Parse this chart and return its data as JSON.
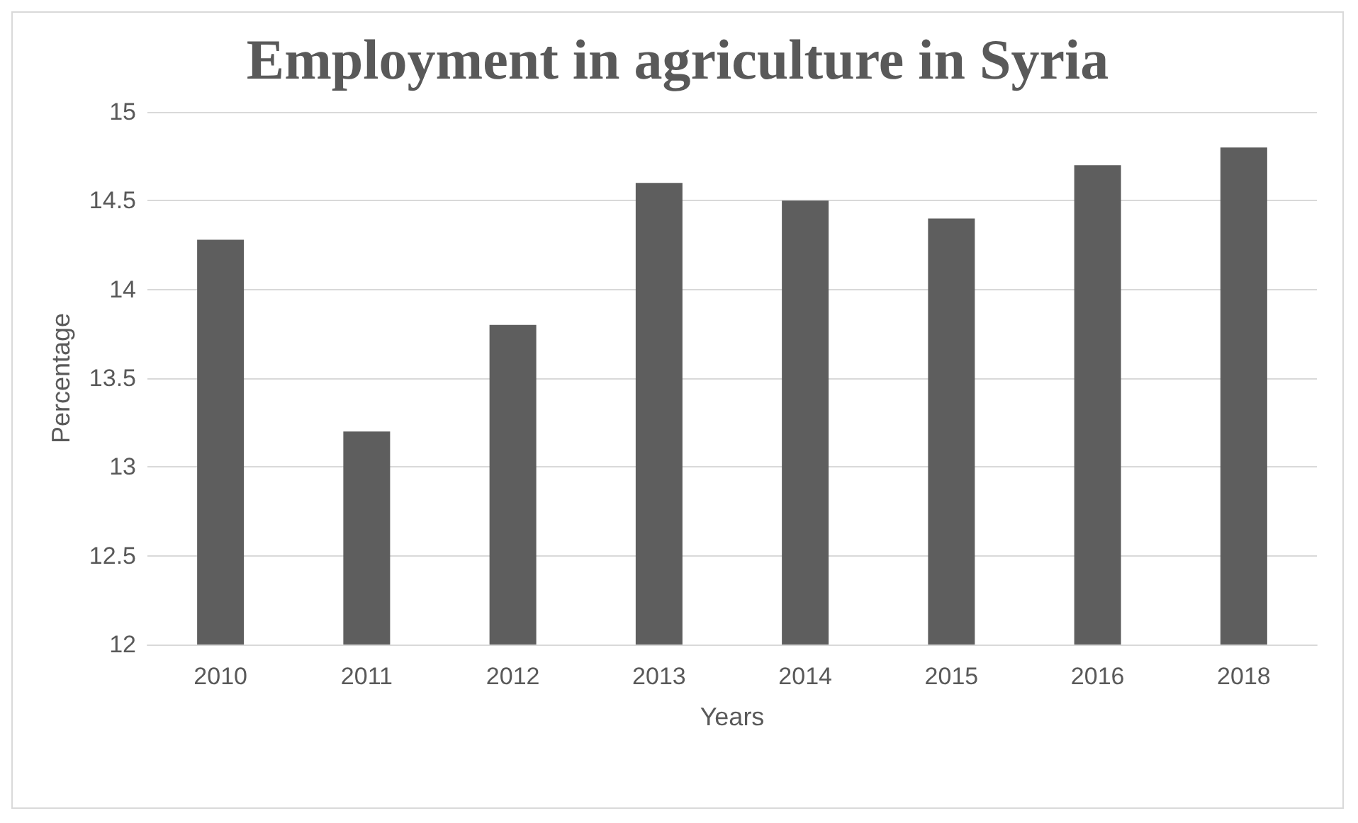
{
  "chart_data": {
    "type": "bar",
    "title": "Employment in agriculture in Syria",
    "xlabel": "Years",
    "ylabel": "Percentage",
    "categories": [
      "2010",
      "2011",
      "2012",
      "2013",
      "2014",
      "2015",
      "2016",
      "2018"
    ],
    "values": [
      14.28,
      13.2,
      13.8,
      14.6,
      14.5,
      14.4,
      14.7,
      14.8
    ],
    "color": "#5e5e5e",
    "ylim": [
      12,
      15
    ],
    "yticks": [
      12,
      12.5,
      13,
      13.5,
      14,
      14.5,
      15
    ],
    "grid": "y"
  }
}
